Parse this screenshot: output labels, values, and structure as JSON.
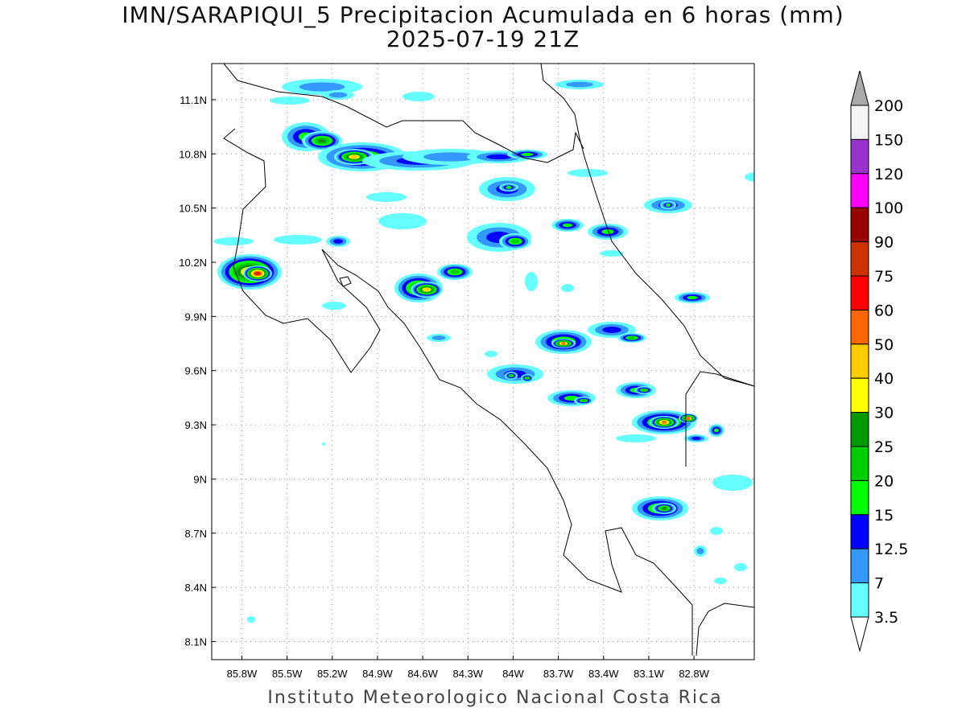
{
  "title": "IMN/SARAPIQUI_5 Precipitacion Acumulada en 6 horas (mm)",
  "subtitle": "2025-07-19 21Z",
  "credit": "Instituto Meteorologico Nacional Costa Rica",
  "map": {
    "lon_range": [
      -86.0,
      -82.4
    ],
    "lat_range": [
      8.0,
      11.3
    ],
    "lat_ticks": [
      "11.1N",
      "10.8N",
      "10.5N",
      "10.2N",
      "9.9N",
      "9.6N",
      "9.3N",
      "9N",
      "8.7N",
      "8.4N",
      "8.1N"
    ],
    "lat_values": [
      11.1,
      10.8,
      10.5,
      10.2,
      9.9,
      9.6,
      9.3,
      9.0,
      8.7,
      8.4,
      8.1
    ],
    "lon_ticks": [
      "85.8W",
      "85.5W",
      "85.2W",
      "84.9W",
      "84.6W",
      "84.3W",
      "84W",
      "83.7W",
      "83.4W",
      "83.1W",
      "82.8W"
    ],
    "lon_values": [
      -85.8,
      -85.5,
      -85.2,
      -84.9,
      -84.6,
      -84.3,
      -84.0,
      -83.7,
      -83.4,
      -83.1,
      -82.8
    ]
  },
  "colorbar": {
    "labels": [
      "200",
      "150",
      "120",
      "100",
      "90",
      "75",
      "60",
      "50",
      "40",
      "30",
      "25",
      "20",
      "15",
      "12.5",
      "7",
      "3.5"
    ],
    "colors": [
      "#f4f4f4",
      "#9933cc",
      "#ff00ff",
      "#990000",
      "#cc3300",
      "#ff0000",
      "#ff6600",
      "#ffcc00",
      "#ffff00",
      "#009900",
      "#00cc00",
      "#00ff00",
      "#0000ff",
      "#3399ff",
      "#66ffff"
    ],
    "over_color": "#aaaaaa",
    "under_color": "#ffffff"
  }
}
